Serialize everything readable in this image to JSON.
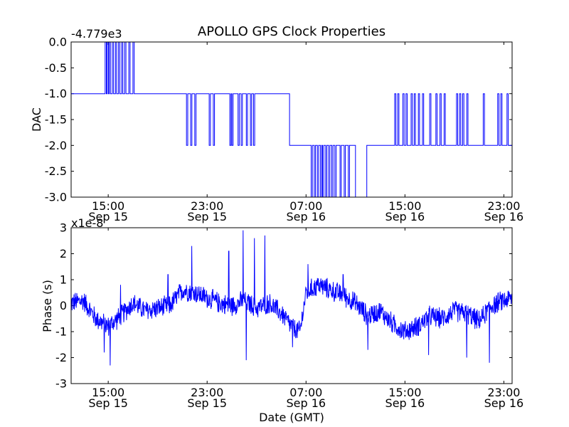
{
  "chart_data": [
    {
      "type": "line",
      "title": "APOLLO GPS Clock Properties",
      "ylabel": "DAC",
      "offset_label": "-4.779e3",
      "ylim": [
        -3.0,
        0.0
      ],
      "yticks": [
        "0.0",
        "-0.5",
        "-1.0",
        "-1.5",
        "-2.0",
        "-2.5",
        "-3.0"
      ],
      "xlim": [
        "2013-09-15 12:00",
        "2013-09-16 23:40"
      ],
      "xticks": [
        {
          "time": "15:00",
          "date": "Sep 15"
        },
        {
          "time": "23:00",
          "date": "Sep 15"
        },
        {
          "time": "07:00",
          "date": "Sep 16"
        },
        {
          "time": "15:00",
          "date": "Sep 16"
        },
        {
          "time": "23:00",
          "date": "Sep 16"
        }
      ],
      "grid": false,
      "color": "#0000ff",
      "segments": [
        {
          "start": "2013-09-15 12:00",
          "end": "2013-09-15 14:40",
          "base": -1,
          "spikes": [],
          "spike_to": 0
        },
        {
          "start": "2013-09-15 14:40",
          "end": "2013-09-15 17:30",
          "base": -1,
          "spikes": [
            "2013-09-15 14:45",
            "2013-09-15 14:55",
            "2013-09-15 15:05",
            "2013-09-15 15:20",
            "2013-09-15 15:35",
            "2013-09-15 15:50",
            "2013-09-15 16:05",
            "2013-09-15 16:20",
            "2013-09-15 16:40",
            "2013-09-15 17:00"
          ],
          "spike_to": 0
        },
        {
          "start": "2013-09-15 17:30",
          "end": "2013-09-15 21:10",
          "base": -1,
          "spikes": [],
          "spike_to": 0
        },
        {
          "start": "2013-09-15 21:10",
          "end": "2013-09-16 03:15",
          "base": -1,
          "spikes": [
            "2013-09-15 21:20",
            "2013-09-15 21:40",
            "2013-09-15 22:00",
            "2013-09-15 23:10",
            "2013-09-15 23:30",
            "2013-09-16 00:50",
            "2013-09-16 01:00",
            "2013-09-16 01:30",
            "2013-09-16 01:45",
            "2013-09-16 02:10",
            "2013-09-16 02:30",
            "2013-09-16 02:45"
          ],
          "spike_to": -2
        },
        {
          "start": "2013-09-16 03:15",
          "end": "2013-09-16 05:40",
          "base": -1,
          "spikes": [],
          "spike_to": -2
        },
        {
          "start": "2013-09-16 05:40",
          "end": "2013-09-16 07:15",
          "base": -2,
          "spikes": [],
          "spike_to": -3
        },
        {
          "start": "2013-09-16 07:15",
          "end": "2013-09-16 11:00",
          "base": -2,
          "spikes": [
            "2013-09-16 07:25",
            "2013-09-16 07:40",
            "2013-09-16 07:55",
            "2013-09-16 08:10",
            "2013-09-16 08:20",
            "2013-09-16 08:35",
            "2013-09-16 08:50",
            "2013-09-16 09:05",
            "2013-09-16 09:20",
            "2013-09-16 09:45",
            "2013-09-16 10:05",
            "2013-09-16 10:25"
          ],
          "spike_to": -3
        },
        {
          "start": "2013-09-16 11:00",
          "end": "2013-09-16 11:55",
          "base": -3,
          "spikes": [],
          "spike_to": -2
        },
        {
          "start": "2013-09-16 11:55",
          "end": "2013-09-16 14:00",
          "base": -2,
          "spikes": [],
          "spike_to": -1
        },
        {
          "start": "2013-09-16 14:00",
          "end": "2013-09-16 23:40",
          "base": -2,
          "spikes": [
            "2013-09-16 14:10",
            "2013-09-16 14:25",
            "2013-09-16 14:50",
            "2013-09-16 15:05",
            "2013-09-16 15:30",
            "2013-09-16 15:45",
            "2013-09-16 16:05",
            "2013-09-16 16:25",
            "2013-09-16 17:00",
            "2013-09-16 17:30",
            "2013-09-16 17:50",
            "2013-09-16 18:10",
            "2013-09-16 19:10",
            "2013-09-16 19:25",
            "2013-09-16 19:40",
            "2013-09-16 20:00",
            "2013-09-16 21:20",
            "2013-09-16 22:30",
            "2013-09-16 22:45",
            "2013-09-16 23:15"
          ],
          "spike_to": -1
        }
      ]
    },
    {
      "type": "line",
      "ylabel": "Phase (s)",
      "xlabel": "Date (GMT)",
      "offset_label": "x1e-8",
      "ylim": [
        -3,
        3
      ],
      "yticks": [
        "3",
        "2",
        "1",
        "0",
        "-1",
        "-2",
        "-3"
      ],
      "xlim": [
        "2013-09-15 12:00",
        "2013-09-16 23:40"
      ],
      "xticks": [
        {
          "time": "15:00",
          "date": "Sep 15"
        },
        {
          "time": "23:00",
          "date": "Sep 15"
        },
        {
          "time": "07:00",
          "date": "Sep 16"
        },
        {
          "time": "15:00",
          "date": "Sep 16"
        },
        {
          "time": "23:00",
          "date": "Sep 16"
        }
      ],
      "grid": false,
      "color": "#0000ff",
      "trend_time": [
        "2013-09-15 12:00",
        "2013-09-15 13:00",
        "2013-09-15 14:00",
        "2013-09-15 15:00",
        "2013-09-15 16:00",
        "2013-09-15 17:00",
        "2013-09-15 18:00",
        "2013-09-15 19:00",
        "2013-09-15 20:00",
        "2013-09-15 21:00",
        "2013-09-15 22:00",
        "2013-09-15 23:00",
        "2013-09-16 00:00",
        "2013-09-16 01:00",
        "2013-09-16 02:00",
        "2013-09-16 03:00",
        "2013-09-16 04:00",
        "2013-09-16 05:00",
        "2013-09-16 06:00",
        "2013-09-16 06:30",
        "2013-09-16 07:00",
        "2013-09-16 08:00",
        "2013-09-16 09:00",
        "2013-09-16 10:00",
        "2013-09-16 11:00",
        "2013-09-16 12:00",
        "2013-09-16 13:00",
        "2013-09-16 14:00",
        "2013-09-16 15:00",
        "2013-09-16 16:00",
        "2013-09-16 17:00",
        "2013-09-16 18:00",
        "2013-09-16 19:00",
        "2013-09-16 20:00",
        "2013-09-16 21:00",
        "2013-09-16 22:00",
        "2013-09-16 23:00",
        "2013-09-16 23:40"
      ],
      "trend_value": [
        0.1,
        0.2,
        -0.5,
        -0.8,
        -0.4,
        0.1,
        -0.2,
        -0.1,
        0.0,
        0.6,
        0.5,
        0.3,
        0.1,
        0.0,
        0.2,
        -0.1,
        0.1,
        -0.3,
        -0.9,
        -1.0,
        0.5,
        0.8,
        0.6,
        0.4,
        0.1,
        -0.4,
        -0.2,
        -0.7,
        -1.0,
        -0.8,
        -0.4,
        -0.5,
        -0.2,
        -0.3,
        -0.6,
        0.0,
        0.2,
        0.3
      ],
      "noise_amplitude": 0.45,
      "spikes_time": [
        "2013-09-15 14:40",
        "2013-09-15 15:10",
        "2013-09-15 16:00",
        "2013-09-15 19:50",
        "2013-09-15 21:45",
        "2013-09-16 00:45",
        "2013-09-16 01:55",
        "2013-09-16 02:50",
        "2013-09-16 03:40",
        "2013-09-16 02:10",
        "2013-09-16 05:55",
        "2013-09-16 07:10",
        "2013-09-16 10:00",
        "2013-09-16 12:00",
        "2013-09-16 16:55",
        "2013-09-16 20:00",
        "2013-09-16 21:50"
      ],
      "spikes_value": [
        -1.8,
        -2.3,
        0.8,
        1.2,
        2.3,
        2.1,
        2.9,
        2.6,
        2.7,
        -2.1,
        -1.6,
        1.6,
        1.2,
        -1.7,
        -1.9,
        -2.0,
        -2.2
      ]
    }
  ]
}
